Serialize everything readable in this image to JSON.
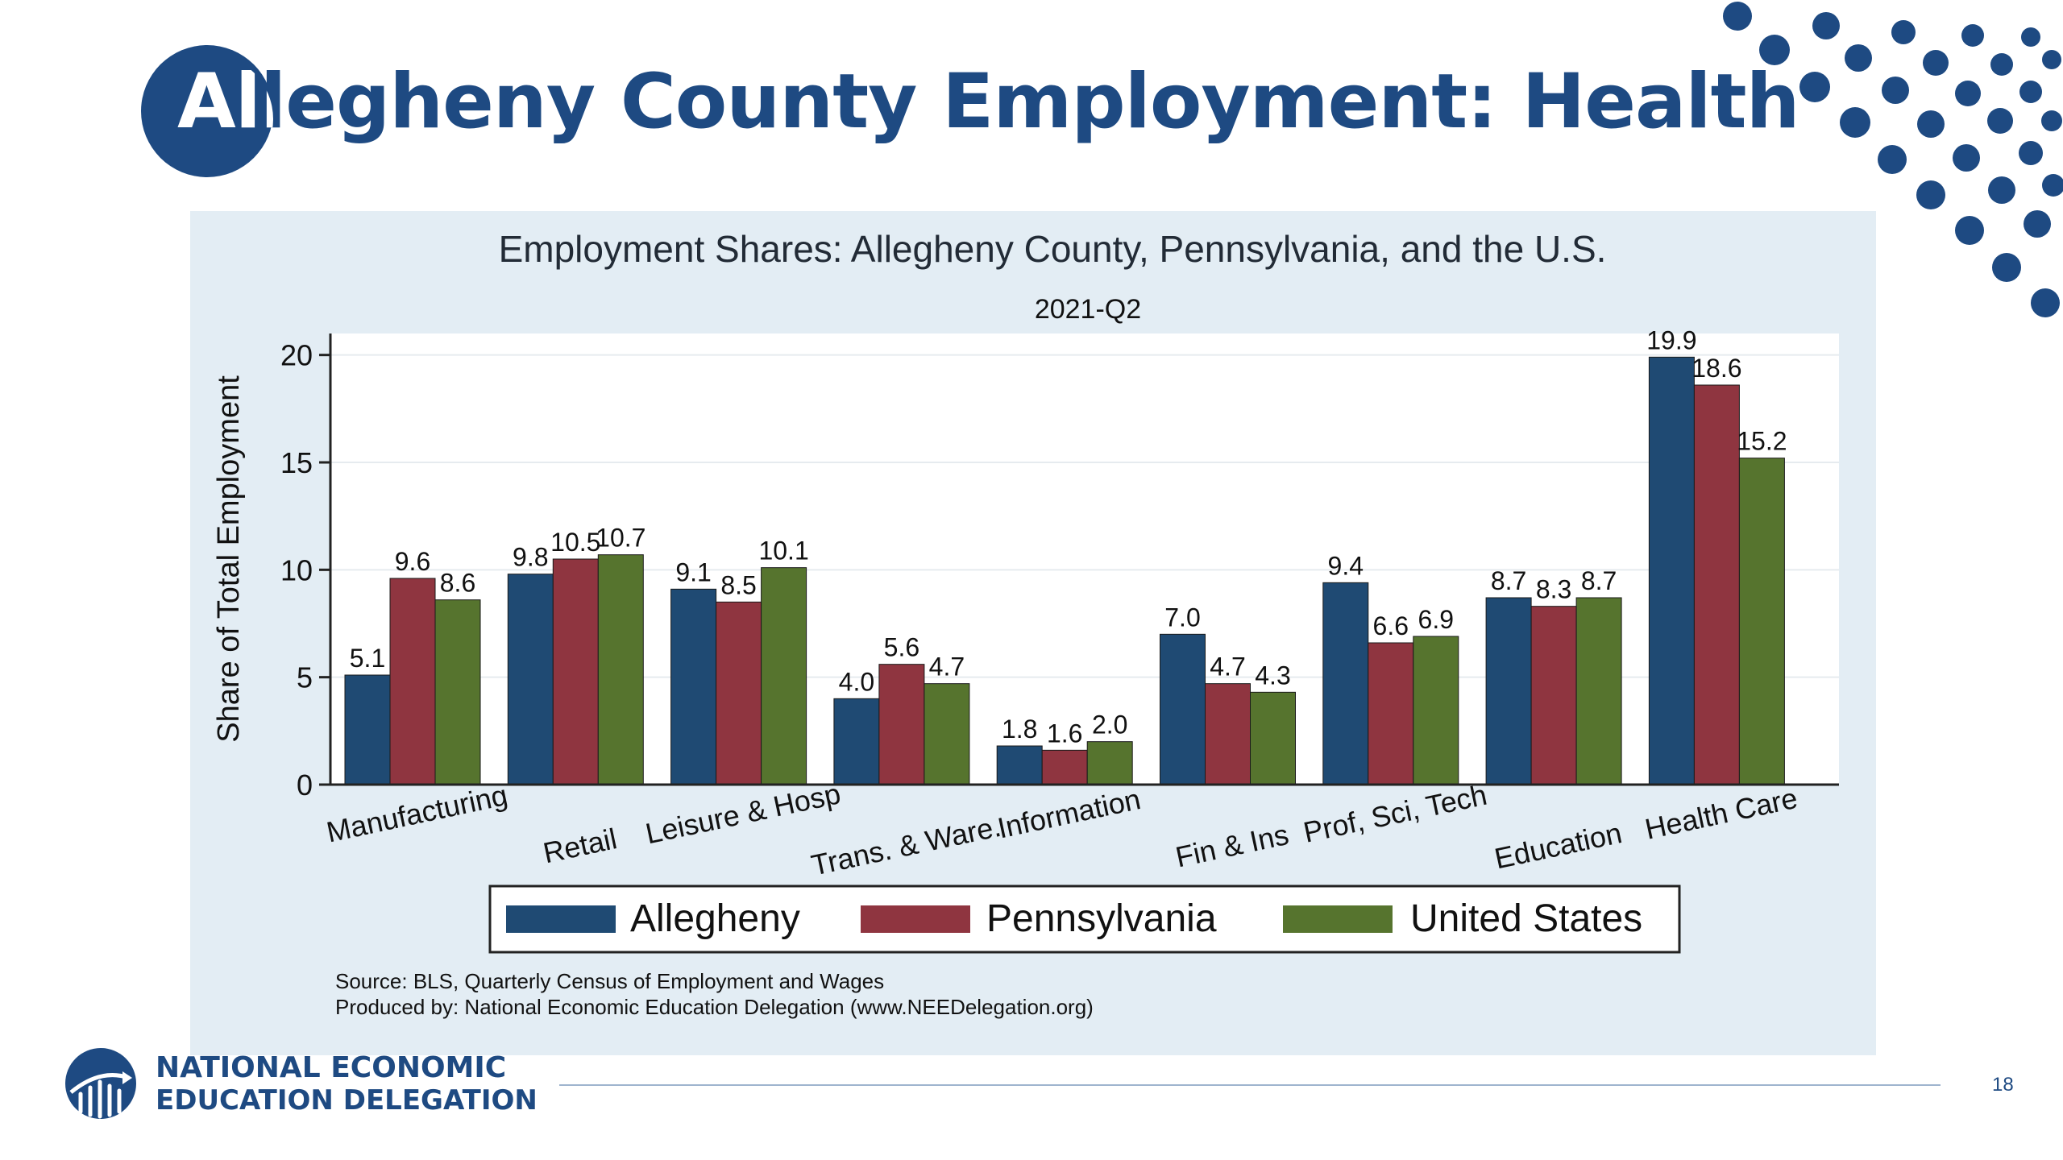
{
  "slide": {
    "title": "Allegheny County Employment: Health",
    "page_number": "18",
    "org_line1": "NATIONAL ECONOMIC",
    "org_line2": "EDUCATION DELEGATION"
  },
  "colors": {
    "brand_blue": "#1e4a82",
    "panel_bg": "#e3edf4",
    "allegheny": "#1f4a73",
    "pennsylvania": "#8f3540",
    "united_states": "#56742e"
  },
  "chart_data": {
    "type": "bar",
    "title": "Employment Shares: Allegheny County, Pennsylvania, and the U.S.",
    "subtitle": "2021-Q2",
    "xlabel": "",
    "ylabel": "Share of Total Employment",
    "ylim": [
      0,
      21
    ],
    "yticks": [
      0,
      5,
      10,
      15,
      20
    ],
    "grid": true,
    "legend_position": "bottom",
    "categories": [
      "Manufacturing",
      "Retail",
      "Leisure & Hosp",
      "Trans. & Ware.",
      "Information",
      "Fin & Ins",
      "Prof, Sci, Tech",
      "Education",
      "Health Care"
    ],
    "series": [
      {
        "name": "Allegheny",
        "color": "#1f4a73",
        "values": [
          5.1,
          9.8,
          9.1,
          4.0,
          1.8,
          7.0,
          9.4,
          8.7,
          19.9
        ]
      },
      {
        "name": "Pennsylvania",
        "color": "#8f3540",
        "values": [
          9.6,
          10.5,
          8.5,
          5.6,
          1.6,
          4.7,
          6.6,
          8.3,
          18.6
        ]
      },
      {
        "name": "United States",
        "color": "#56742e",
        "values": [
          8.6,
          10.7,
          10.1,
          4.7,
          2.0,
          4.3,
          6.9,
          8.7,
          15.2
        ]
      }
    ],
    "notes": [
      "Source: BLS, Quarterly Census of Employment and Wages",
      "Produced by: National Economic Education Delegation (www.NEEDelegation.org)"
    ]
  }
}
